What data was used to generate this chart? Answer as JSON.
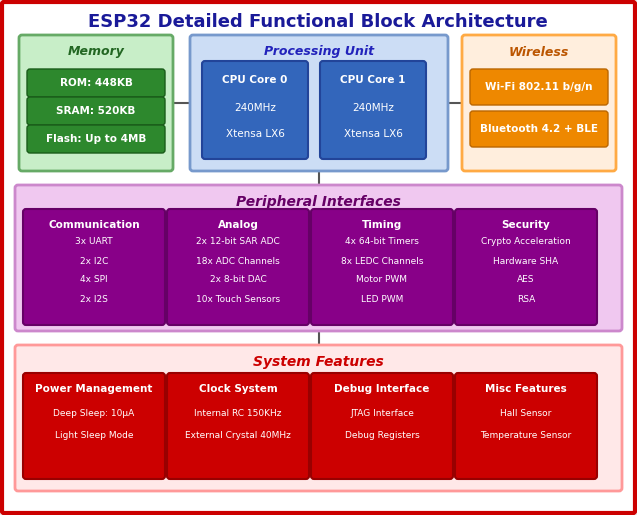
{
  "title": "ESP32 Detailed Functional Block Architecture",
  "title_color": "#1a1a99",
  "title_fontsize": 13,
  "bg_color": "#e8e8e8",
  "border_color": "#cc0000",
  "memory": {
    "label": "Memory",
    "label_color": "#226622",
    "box_color": "#c8eec8",
    "box_border": "#66aa66",
    "items": [
      "ROM: 448KB",
      "SRAM: 520KB",
      "Flash: Up to 4MB"
    ],
    "item_bg": "#2d882d",
    "item_border": "#1a5c1a"
  },
  "processing": {
    "label": "Processing Unit",
    "label_color": "#2222bb",
    "box_color": "#ccddf5",
    "box_border": "#7799cc",
    "cores": [
      {
        "title": "CPU Core 0",
        "sub1": "240MHz",
        "sub2": "Xtensa LX6"
      },
      {
        "title": "CPU Core 1",
        "sub1": "240MHz",
        "sub2": "Xtensa LX6"
      }
    ],
    "core_color": "#3366bb",
    "core_border": "#224499"
  },
  "wireless": {
    "label": "Wireless",
    "label_color": "#bb5500",
    "box_color": "#ffeedd",
    "box_border": "#ffaa44",
    "items": [
      "Wi-Fi 802.11 b/g/n",
      "Bluetooth 4.2 + BLE"
    ],
    "item_bg": "#ee8800",
    "item_border": "#bb6600"
  },
  "peripheral": {
    "label": "Peripheral Interfaces",
    "label_color": "#660066",
    "box_color": "#f0c8f0",
    "box_border": "#cc88cc",
    "sections": [
      {
        "title": "Communication",
        "items": [
          "3x UART",
          "2x I2C",
          "4x SPI",
          "2x I2S"
        ]
      },
      {
        "title": "Analog",
        "items": [
          "2x 12-bit SAR ADC",
          "18x ADC Channels",
          "2x 8-bit DAC",
          "10x Touch Sensors"
        ]
      },
      {
        "title": "Timing",
        "items": [
          "4x 64-bit Timers",
          "8x LEDC Channels",
          "Motor PWM",
          "LED PWM"
        ]
      },
      {
        "title": "Security",
        "items": [
          "Crypto Acceleration",
          "Hardware SHA",
          "AES",
          "RSA"
        ]
      }
    ],
    "section_bg": "#880088",
    "section_border": "#660066"
  },
  "system": {
    "label": "System Features",
    "label_color": "#cc0000",
    "box_color": "#ffe8e8",
    "box_border": "#ff9999",
    "sections": [
      {
        "title": "Power Management",
        "items": [
          "Deep Sleep: 10μA",
          "Light Sleep Mode"
        ]
      },
      {
        "title": "Clock System",
        "items": [
          "Internal RC 150KHz",
          "External Crystal 40MHz"
        ]
      },
      {
        "title": "Debug Interface",
        "items": [
          "JTAG Interface",
          "Debug Registers"
        ]
      },
      {
        "title": "Misc Features",
        "items": [
          "Hall Sensor",
          "Temperature Sensor"
        ]
      }
    ],
    "section_bg": "#cc0000",
    "section_border": "#990000"
  },
  "connector_color": "#555555",
  "white": "#ffffff"
}
